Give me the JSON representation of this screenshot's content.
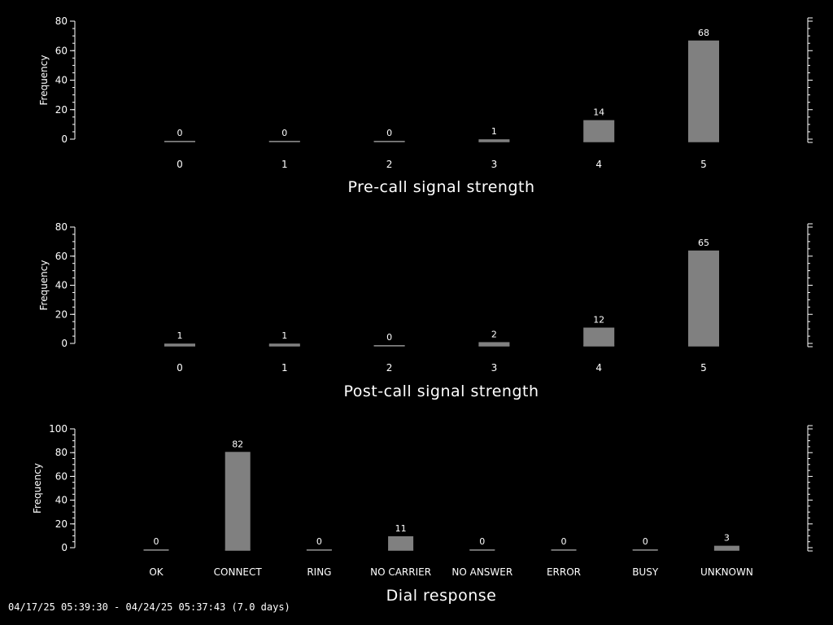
{
  "colors": {
    "background": "#000000",
    "bar": "#808080",
    "axis": "#ffffff",
    "text": "#ffffff"
  },
  "footer": {
    "date_range": "04/17/25 05:39:30 - 04/24/25 05:37:43 (7.0 days)"
  },
  "chart_data": [
    {
      "type": "bar",
      "title": "",
      "xlabel": "Pre-call signal strength",
      "ylabel": "Frequency",
      "categories": [
        "0",
        "1",
        "2",
        "3",
        "4",
        "5"
      ],
      "values": [
        0,
        0,
        0,
        1,
        14,
        68
      ],
      "ylim": [
        0,
        80
      ],
      "yticks": [
        0,
        20,
        40,
        60,
        80
      ],
      "data_labels": true,
      "grid": false
    },
    {
      "type": "bar",
      "title": "",
      "xlabel": "Post-call signal strength",
      "ylabel": "Frequency",
      "categories": [
        "0",
        "1",
        "2",
        "3",
        "4",
        "5"
      ],
      "values": [
        1,
        1,
        0,
        2,
        12,
        65
      ],
      "ylim": [
        0,
        80
      ],
      "yticks": [
        0,
        20,
        40,
        60,
        80
      ],
      "data_labels": true,
      "grid": false
    },
    {
      "type": "bar",
      "title": "",
      "xlabel": "Dial response",
      "ylabel": "Frequency",
      "categories": [
        "OK",
        "CONNECT",
        "RING",
        "NO CARRIER",
        "NO ANSWER",
        "ERROR",
        "BUSY",
        "UNKNOWN"
      ],
      "values": [
        0,
        82,
        0,
        11,
        0,
        0,
        0,
        3
      ],
      "ylim": [
        0,
        100
      ],
      "yticks": [
        0,
        20,
        40,
        60,
        80,
        100
      ],
      "data_labels": true,
      "grid": false
    }
  ]
}
